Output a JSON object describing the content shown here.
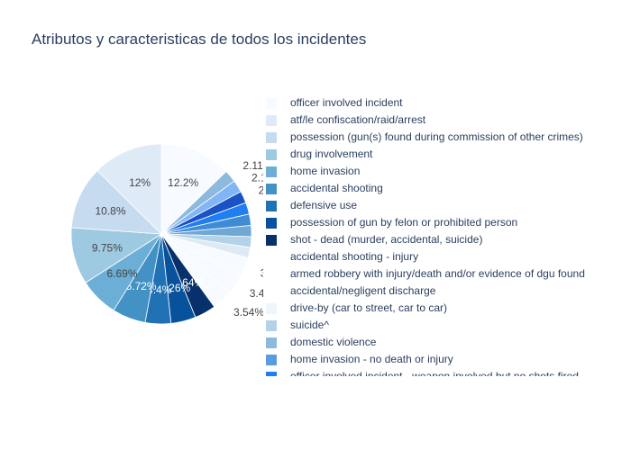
{
  "chart_data": {
    "type": "pie",
    "title": "Atributos y caracteristicas de todos los incidentes",
    "slices": [
      {
        "label": "officer involved incident",
        "value": 12.2,
        "text": "12.2%",
        "color": "#f7fbff"
      },
      {
        "label": "home invasion - no death or injury",
        "value": 2.11,
        "text": "2.11%",
        "color": "#8dbadc"
      },
      {
        "label": "officer involved incident - weapon involved but no shots fired",
        "value": 2.1,
        "text": "2.1%",
        "color": "#82b5f5"
      },
      {
        "label": "",
        "value": 2.05,
        "text": "2.",
        "color": "#1a53c8"
      },
      {
        "label": "",
        "value": 2.0,
        "text": "2",
        "color": "#1f7ef0"
      },
      {
        "label": "",
        "value": 1.95,
        "text": "",
        "color": "#3f8bd6"
      },
      {
        "label": "",
        "value": 1.9,
        "text": "",
        "color": "#6fa7d5"
      },
      {
        "label": "",
        "value": 1.85,
        "text": "2",
        "color": "#b3d2e8"
      },
      {
        "label": "",
        "value": 1.8,
        "text": "2",
        "color": "#ddeaf5"
      },
      {
        "label": "",
        "value": 3.22,
        "text": "3.2",
        "color": "#f7fbff"
      },
      {
        "label": "",
        "value": 3.46,
        "text": "3.46%",
        "color": "#f7fbff"
      },
      {
        "label": "",
        "value": 3.54,
        "text": "3.54%",
        "color": "#f7fbff"
      },
      {
        "label": "shot - dead (murder, accidental, suicide)",
        "value": 3.64,
        "text": "3.64%",
        "color": "#08306b"
      },
      {
        "label": "possession of gun by felon or prohibited person",
        "value": 4.26,
        "text": "4.26%",
        "color": "#08519c"
      },
      {
        "label": "defensive use",
        "value": 4.4,
        "text": "4.4%",
        "color": "#2171b5"
      },
      {
        "label": "accidental shooting",
        "value": 5.72,
        "text": "5.72%",
        "color": "#4292c6"
      },
      {
        "label": "home invasion",
        "value": 6.69,
        "text": "6.69%",
        "color": "#6baed6"
      },
      {
        "label": "drug involvement",
        "value": 9.75,
        "text": "9.75%",
        "color": "#9ecae1"
      },
      {
        "label": "possession (gun(s) found during commission of other crimes)",
        "value": 10.8,
        "text": "10.8%",
        "color": "#c6dbef"
      },
      {
        "label": "atf/le confiscation/raid/arrest",
        "value": 12.0,
        "text": "12%",
        "color": "#deebf7"
      }
    ],
    "legend": {
      "placement": "right",
      "items": [
        {
          "label": "officer involved incident",
          "color": "#f7fbff"
        },
        {
          "label": "atf/le confiscation/raid/arrest",
          "color": "#deebf7"
        },
        {
          "label": "possession (gun(s) found during commission of other crimes)",
          "color": "#c6dbef"
        },
        {
          "label": "drug involvement",
          "color": "#9ecae1"
        },
        {
          "label": "home invasion",
          "color": "#6baed6"
        },
        {
          "label": "accidental shooting",
          "color": "#4292c6"
        },
        {
          "label": "defensive use",
          "color": "#2171b5"
        },
        {
          "label": "possession of gun by felon or prohibited person",
          "color": "#08519c"
        },
        {
          "label": "shot - dead (murder, accidental, suicide)",
          "color": "#08306b"
        },
        {
          "label": "accidental shooting - injury",
          "color": "#ffffff"
        },
        {
          "label": "armed robbery with injury/death and/or evidence of dgu found",
          "color": "#ffffff"
        },
        {
          "label": "accidental/negligent discharge",
          "color": "#ffffff"
        },
        {
          "label": "drive-by (car to street, car to car)",
          "color": "#eef5fb"
        },
        {
          "label": "suicide^",
          "color": "#b3d2e8"
        },
        {
          "label": "domestic violence",
          "color": "#8dbadc"
        },
        {
          "label": "home invasion - no death or injury",
          "color": "#5b9be0"
        },
        {
          "label": "officer involved incident - weapon involved but no shots fired",
          "color": "#1f7ef0"
        }
      ]
    }
  }
}
